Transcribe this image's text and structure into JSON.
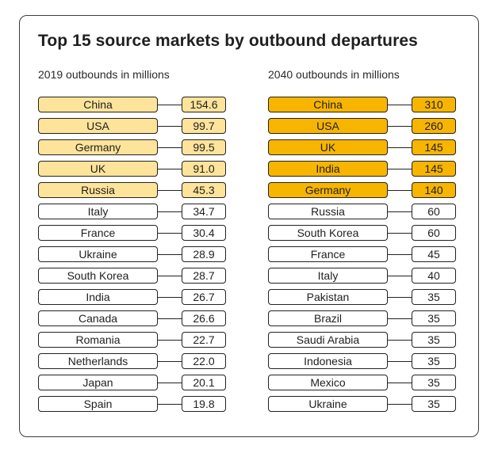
{
  "colors": {
    "highlight_2019": "#fde49a",
    "highlight_2040": "#f7b500",
    "plain": "#ffffff",
    "border": "#222222"
  },
  "chart_data": {
    "type": "table",
    "title": "Top 15 source markets by outbound departures",
    "tables": [
      {
        "subtitle": "2019 outbounds in millions",
        "highlight_top": 5,
        "rows": [
          {
            "country": "China",
            "value": "154.6"
          },
          {
            "country": "USA",
            "value": "99.7"
          },
          {
            "country": "Germany",
            "value": "99.5"
          },
          {
            "country": "UK",
            "value": "91.0"
          },
          {
            "country": "Russia",
            "value": "45.3"
          },
          {
            "country": "Italy",
            "value": "34.7"
          },
          {
            "country": "France",
            "value": "30.4"
          },
          {
            "country": "Ukraine",
            "value": "28.9"
          },
          {
            "country": "South Korea",
            "value": "28.7"
          },
          {
            "country": "India",
            "value": "26.7"
          },
          {
            "country": "Canada",
            "value": "26.6"
          },
          {
            "country": "Romania",
            "value": "22.7"
          },
          {
            "country": "Netherlands",
            "value": "22.0"
          },
          {
            "country": "Japan",
            "value": "20.1"
          },
          {
            "country": "Spain",
            "value": "19.8"
          }
        ]
      },
      {
        "subtitle": "2040 outbounds in millions",
        "highlight_top": 5,
        "rows": [
          {
            "country": "China",
            "value": "310"
          },
          {
            "country": "USA",
            "value": "260"
          },
          {
            "country": "UK",
            "value": "145"
          },
          {
            "country": "India",
            "value": "145"
          },
          {
            "country": "Germany",
            "value": "140"
          },
          {
            "country": "Russia",
            "value": "60"
          },
          {
            "country": "South Korea",
            "value": "60"
          },
          {
            "country": "France",
            "value": "45"
          },
          {
            "country": "Italy",
            "value": "40"
          },
          {
            "country": "Pakistan",
            "value": "35"
          },
          {
            "country": "Brazil",
            "value": "35"
          },
          {
            "country": "Saudi Arabia",
            "value": "35"
          },
          {
            "country": "Indonesia",
            "value": "35"
          },
          {
            "country": "Mexico",
            "value": "35"
          },
          {
            "country": "Ukraine",
            "value": "35"
          }
        ]
      }
    ]
  }
}
